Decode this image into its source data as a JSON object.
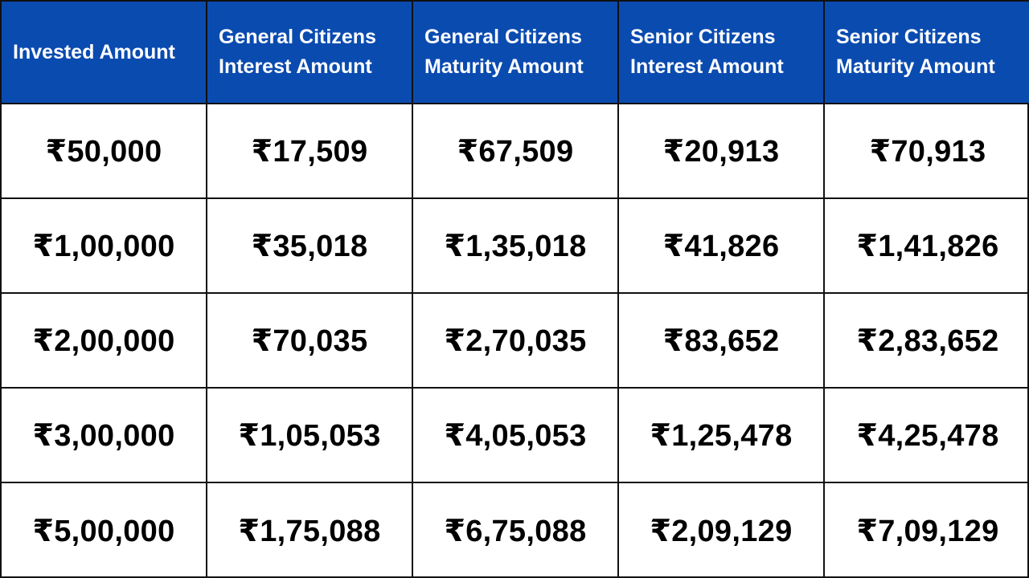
{
  "colors": {
    "header_background": "#0a4bb0",
    "header_text": "#ffffff",
    "border": "#111111",
    "cell_text": "#000000"
  },
  "table": {
    "headers": [
      "Invested Amount",
      "General Citizens\nInterest Amount",
      "General Citizens\nMaturity Amount",
      "Senior Citizens\nInterest Amount",
      "Senior Citizens\nMaturity Amount"
    ],
    "rows": [
      [
        "₹50,000",
        "₹17,509",
        "₹67,509",
        "₹20,913",
        "₹70,913"
      ],
      [
        "₹1,00,000",
        "₹35,018",
        "₹1,35,018",
        "₹41,826",
        "₹1,41,826"
      ],
      [
        "₹2,00,000",
        "₹70,035",
        "₹2,70,035",
        "₹83,652",
        "₹2,83,652"
      ],
      [
        "₹3,00,000",
        "₹1,05,053",
        "₹4,05,053",
        "₹1,25,478",
        "₹4,25,478"
      ],
      [
        "₹5,00,000",
        "₹1,75,088",
        "₹6,75,088",
        "₹2,09,129",
        "₹7,09,129"
      ]
    ]
  }
}
